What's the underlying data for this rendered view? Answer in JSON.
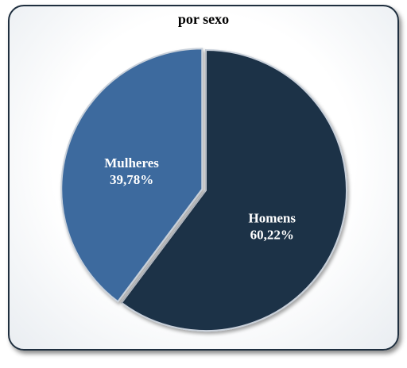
{
  "chart_data": {
    "type": "pie",
    "title": "por sexo",
    "categories": [
      "Homens",
      "Mulheres"
    ],
    "values": [
      60.22,
      39.78
    ],
    "value_labels": [
      "60,22%",
      "39,78%"
    ],
    "colors": [
      "#1f3047",
      "#3d6a9e"
    ],
    "legend": "none"
  }
}
